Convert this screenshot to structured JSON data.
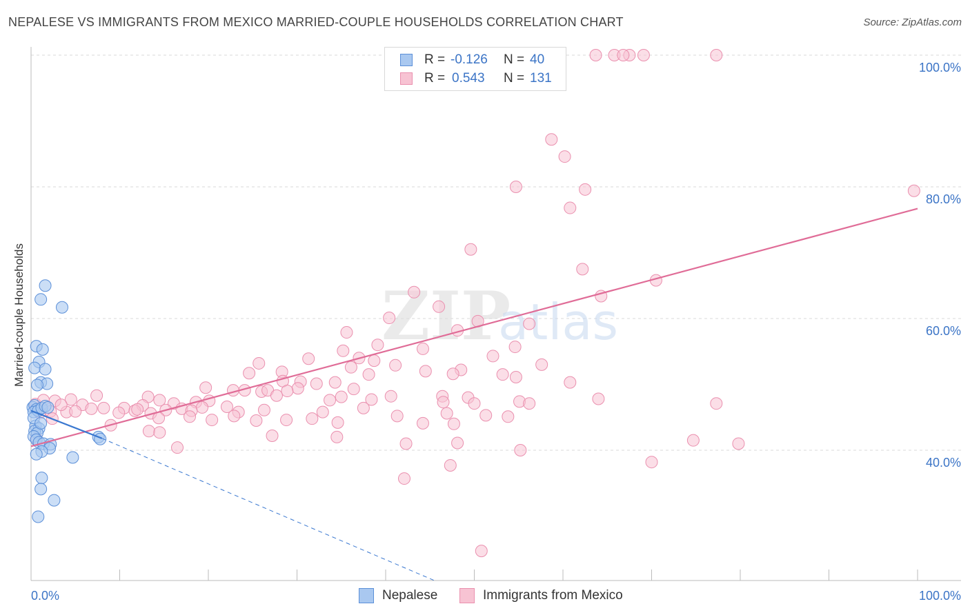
{
  "header": {
    "title": "NEPALESE VS IMMIGRANTS FROM MEXICO MARRIED-COUPLE HOUSEHOLDS CORRELATION CHART",
    "source": "Source: ZipAtlas.com"
  },
  "watermark": {
    "zip": "ZIP",
    "atlas": "atlas"
  },
  "legend": {
    "rows": [
      {
        "r_label": "R = ",
        "r_value": "-0.126",
        "n_label": "N = ",
        "n_value": "40"
      },
      {
        "r_label": "R = ",
        "r_value": "0.543",
        "n_label": "N = ",
        "n_value": "131"
      }
    ]
  },
  "bottom_legend": {
    "nepalese": "Nepalese",
    "mexico": "Immigrants from Mexico"
  },
  "chart_data": {
    "type": "scatter",
    "title": "NEPALESE VS IMMIGRANTS FROM MEXICO MARRIED-COUPLE HOUSEHOLDS CORRELATION CHART",
    "xlabel": "",
    "ylabel": "Married-couple Households",
    "x_tick_labels": [
      "0.0%",
      "100.0%"
    ],
    "y_tick_labels": [
      "40.0%",
      "60.0%",
      "80.0%",
      "100.0%"
    ],
    "xlim": [
      0,
      100
    ],
    "ylim": [
      20,
      102
    ],
    "grid": true,
    "legend_position": "top-center",
    "colors": {
      "nepalese_fill": "#a9c8f0",
      "nepalese_stroke": "#5b8fd8",
      "nepalese_line": "#3a78d0",
      "mexico_fill": "#f7c3d3",
      "mexico_stroke": "#ea8fae",
      "mexico_line": "#e06c97",
      "tick_label": "#3b74c6"
    },
    "series": [
      {
        "name": "Nepalese",
        "R": -0.126,
        "N": 40,
        "trend": {
          "x": [
            0,
            8
          ],
          "y": [
            46.0,
            41.8
          ],
          "dashed_to": [
            45.5,
            20
          ]
        },
        "points": [
          [
            0.2,
            46.5
          ],
          [
            0.4,
            46.8
          ],
          [
            0.6,
            46.2
          ],
          [
            0.3,
            45.8
          ],
          [
            0.8,
            46.0
          ],
          [
            1.2,
            46.4
          ],
          [
            1.6,
            46.7
          ],
          [
            0.5,
            43.7
          ],
          [
            0.9,
            43.3
          ],
          [
            0.4,
            42.9
          ],
          [
            0.7,
            42.6
          ],
          [
            0.3,
            42.1
          ],
          [
            0.6,
            41.6
          ],
          [
            0.9,
            41.2
          ],
          [
            1.4,
            41.0
          ],
          [
            2.2,
            40.9
          ],
          [
            1.6,
            65.0
          ],
          [
            1.1,
            62.9
          ],
          [
            3.5,
            61.7
          ],
          [
            0.6,
            55.8
          ],
          [
            1.3,
            55.3
          ],
          [
            0.9,
            53.4
          ],
          [
            0.4,
            52.5
          ],
          [
            1.6,
            52.3
          ],
          [
            1.1,
            50.3
          ],
          [
            1.8,
            50.1
          ],
          [
            0.7,
            49.9
          ],
          [
            0.3,
            44.9
          ],
          [
            1.1,
            44.1
          ],
          [
            2.1,
            40.3
          ],
          [
            1.2,
            39.8
          ],
          [
            0.6,
            39.4
          ],
          [
            4.7,
            38.9
          ],
          [
            1.2,
            35.8
          ],
          [
            1.1,
            34.1
          ],
          [
            2.6,
            32.4
          ],
          [
            0.8,
            29.9
          ],
          [
            7.6,
            42.0
          ],
          [
            7.8,
            41.7
          ],
          [
            1.9,
            46.5
          ]
        ]
      },
      {
        "name": "Immigrants from Mexico",
        "R": 0.543,
        "N": 131,
        "trend": {
          "x": [
            0,
            100
          ],
          "y": [
            40.6,
            76.7
          ]
        },
        "points": [
          [
            56.3,
            100
          ],
          [
            58.5,
            100
          ],
          [
            63.7,
            100
          ],
          [
            65.8,
            100
          ],
          [
            67.5,
            100
          ],
          [
            66.8,
            100
          ],
          [
            69.1,
            100
          ],
          [
            77.3,
            100
          ],
          [
            58.7,
            87.2
          ],
          [
            60.2,
            84.6
          ],
          [
            54.7,
            80.0
          ],
          [
            62.5,
            79.6
          ],
          [
            60.8,
            76.8
          ],
          [
            99.6,
            79.4
          ],
          [
            49.6,
            70.5
          ],
          [
            62.2,
            67.5
          ],
          [
            70.5,
            65.8
          ],
          [
            64.3,
            63.4
          ],
          [
            43.2,
            64.0
          ],
          [
            46.0,
            61.8
          ],
          [
            40.4,
            60.1
          ],
          [
            50.4,
            59.6
          ],
          [
            56.2,
            59.2
          ],
          [
            48.1,
            58.2
          ],
          [
            35.6,
            57.9
          ],
          [
            39.1,
            56.0
          ],
          [
            44.2,
            55.4
          ],
          [
            35.2,
            55.1
          ],
          [
            54.6,
            55.7
          ],
          [
            37.0,
            54.0
          ],
          [
            52.1,
            54.3
          ],
          [
            31.3,
            53.9
          ],
          [
            38.7,
            53.6
          ],
          [
            25.7,
            53.2
          ],
          [
            41.1,
            52.9
          ],
          [
            36.1,
            52.6
          ],
          [
            48.5,
            52.2
          ],
          [
            24.6,
            51.7
          ],
          [
            28.3,
            51.9
          ],
          [
            44.5,
            52.0
          ],
          [
            38.1,
            51.5
          ],
          [
            47.6,
            51.6
          ],
          [
            53.2,
            51.5
          ],
          [
            57.6,
            53.0
          ],
          [
            30.4,
            50.4
          ],
          [
            34.3,
            50.3
          ],
          [
            19.7,
            49.5
          ],
          [
            22.8,
            49.1
          ],
          [
            24.1,
            49.1
          ],
          [
            26.0,
            48.9
          ],
          [
            26.7,
            49.1
          ],
          [
            28.4,
            50.5
          ],
          [
            27.7,
            48.3
          ],
          [
            30.1,
            49.4
          ],
          [
            32.2,
            50.1
          ],
          [
            35.0,
            48.1
          ],
          [
            36.4,
            49.3
          ],
          [
            28.9,
            49.0
          ],
          [
            33.7,
            47.6
          ],
          [
            38.4,
            47.7
          ],
          [
            40.6,
            48.2
          ],
          [
            46.4,
            48.2
          ],
          [
            49.3,
            48.0
          ],
          [
            55.1,
            47.4
          ],
          [
            46.5,
            47.3
          ],
          [
            56.2,
            47.1
          ],
          [
            50.0,
            47.1
          ],
          [
            60.8,
            50.3
          ],
          [
            54.7,
            51.1
          ],
          [
            64.0,
            47.8
          ],
          [
            77.3,
            47.1
          ],
          [
            13.2,
            48.1
          ],
          [
            14.5,
            47.6
          ],
          [
            18.6,
            47.3
          ],
          [
            20.1,
            47.5
          ],
          [
            7.4,
            48.3
          ],
          [
            22.1,
            46.6
          ],
          [
            16.1,
            47.1
          ],
          [
            12.6,
            46.8
          ],
          [
            4.5,
            47.7
          ],
          [
            5.8,
            46.9
          ],
          [
            6.8,
            46.3
          ],
          [
            10.5,
            46.4
          ],
          [
            11.7,
            46.0
          ],
          [
            15.2,
            46.1
          ],
          [
            17.0,
            46.3
          ],
          [
            18.1,
            46.0
          ],
          [
            19.3,
            46.5
          ],
          [
            23.4,
            45.8
          ],
          [
            26.3,
            46.1
          ],
          [
            32.9,
            45.8
          ],
          [
            37.5,
            46.4
          ],
          [
            46.9,
            45.6
          ],
          [
            51.3,
            45.3
          ],
          [
            53.8,
            45.1
          ],
          [
            8.2,
            46.4
          ],
          [
            4.0,
            45.8
          ],
          [
            5.0,
            45.9
          ],
          [
            2.2,
            45.9
          ],
          [
            9.9,
            45.7
          ],
          [
            12.0,
            46.2
          ],
          [
            13.5,
            45.6
          ],
          [
            14.4,
            44.9
          ],
          [
            17.9,
            45.1
          ],
          [
            22.9,
            45.2
          ],
          [
            20.4,
            44.6
          ],
          [
            25.4,
            44.5
          ],
          [
            28.8,
            44.6
          ],
          [
            31.7,
            44.8
          ],
          [
            41.3,
            45.2
          ],
          [
            34.6,
            44.2
          ],
          [
            44.2,
            44.1
          ],
          [
            47.7,
            44.0
          ],
          [
            9.0,
            43.8
          ],
          [
            13.3,
            42.9
          ],
          [
            14.5,
            42.7
          ],
          [
            27.2,
            42.2
          ],
          [
            34.5,
            42.0
          ],
          [
            42.3,
            41.0
          ],
          [
            48.1,
            41.1
          ],
          [
            55.2,
            40.0
          ],
          [
            70.0,
            38.2
          ],
          [
            74.7,
            41.5
          ],
          [
            79.8,
            41.0
          ],
          [
            0.5,
            47.0
          ],
          [
            1.4,
            47.6
          ],
          [
            2.7,
            47.5
          ],
          [
            3.4,
            46.9
          ],
          [
            1.0,
            45.7
          ],
          [
            2.4,
            44.8
          ],
          [
            0.6,
            41.7
          ],
          [
            16.5,
            40.4
          ],
          [
            47.3,
            37.7
          ],
          [
            42.1,
            35.7
          ],
          [
            50.8,
            24.7
          ]
        ]
      }
    ]
  }
}
